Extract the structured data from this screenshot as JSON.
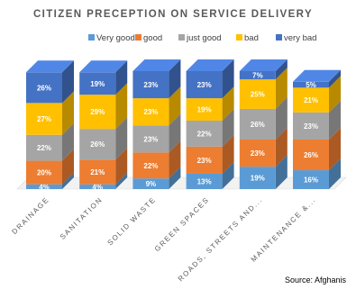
{
  "chart_data": {
    "type": "bar",
    "stacked": true,
    "orientation": "vertical",
    "title": "CITIZEN PRECEPTION ON SERVICE DELIVERY",
    "categories": [
      "DRAINAGE",
      "SANITATION",
      "SOLID WASTE",
      "GREEN SPACES",
      "ROADS, STREETS AND...",
      "MAINTENANCE &..."
    ],
    "series": [
      {
        "name": "Very good",
        "color": "#5b9bd5",
        "values": [
          4,
          4,
          9,
          13,
          19,
          16
        ]
      },
      {
        "name": "good",
        "color": "#ed7d31",
        "values": [
          20,
          21,
          22,
          23,
          23,
          26
        ]
      },
      {
        "name": "just good",
        "color": "#a5a5a5",
        "values": [
          22,
          26,
          23,
          22,
          26,
          23
        ]
      },
      {
        "name": "bad",
        "color": "#ffc000",
        "values": [
          27,
          29,
          23,
          19,
          25,
          21
        ]
      },
      {
        "name": "very bad",
        "color": "#4472c4",
        "values": [
          26,
          19,
          23,
          23,
          7,
          5
        ]
      }
    ],
    "ylim": [
      0,
      100
    ],
    "grid": false,
    "legend": "top",
    "source": "Source: Afghanis"
  }
}
